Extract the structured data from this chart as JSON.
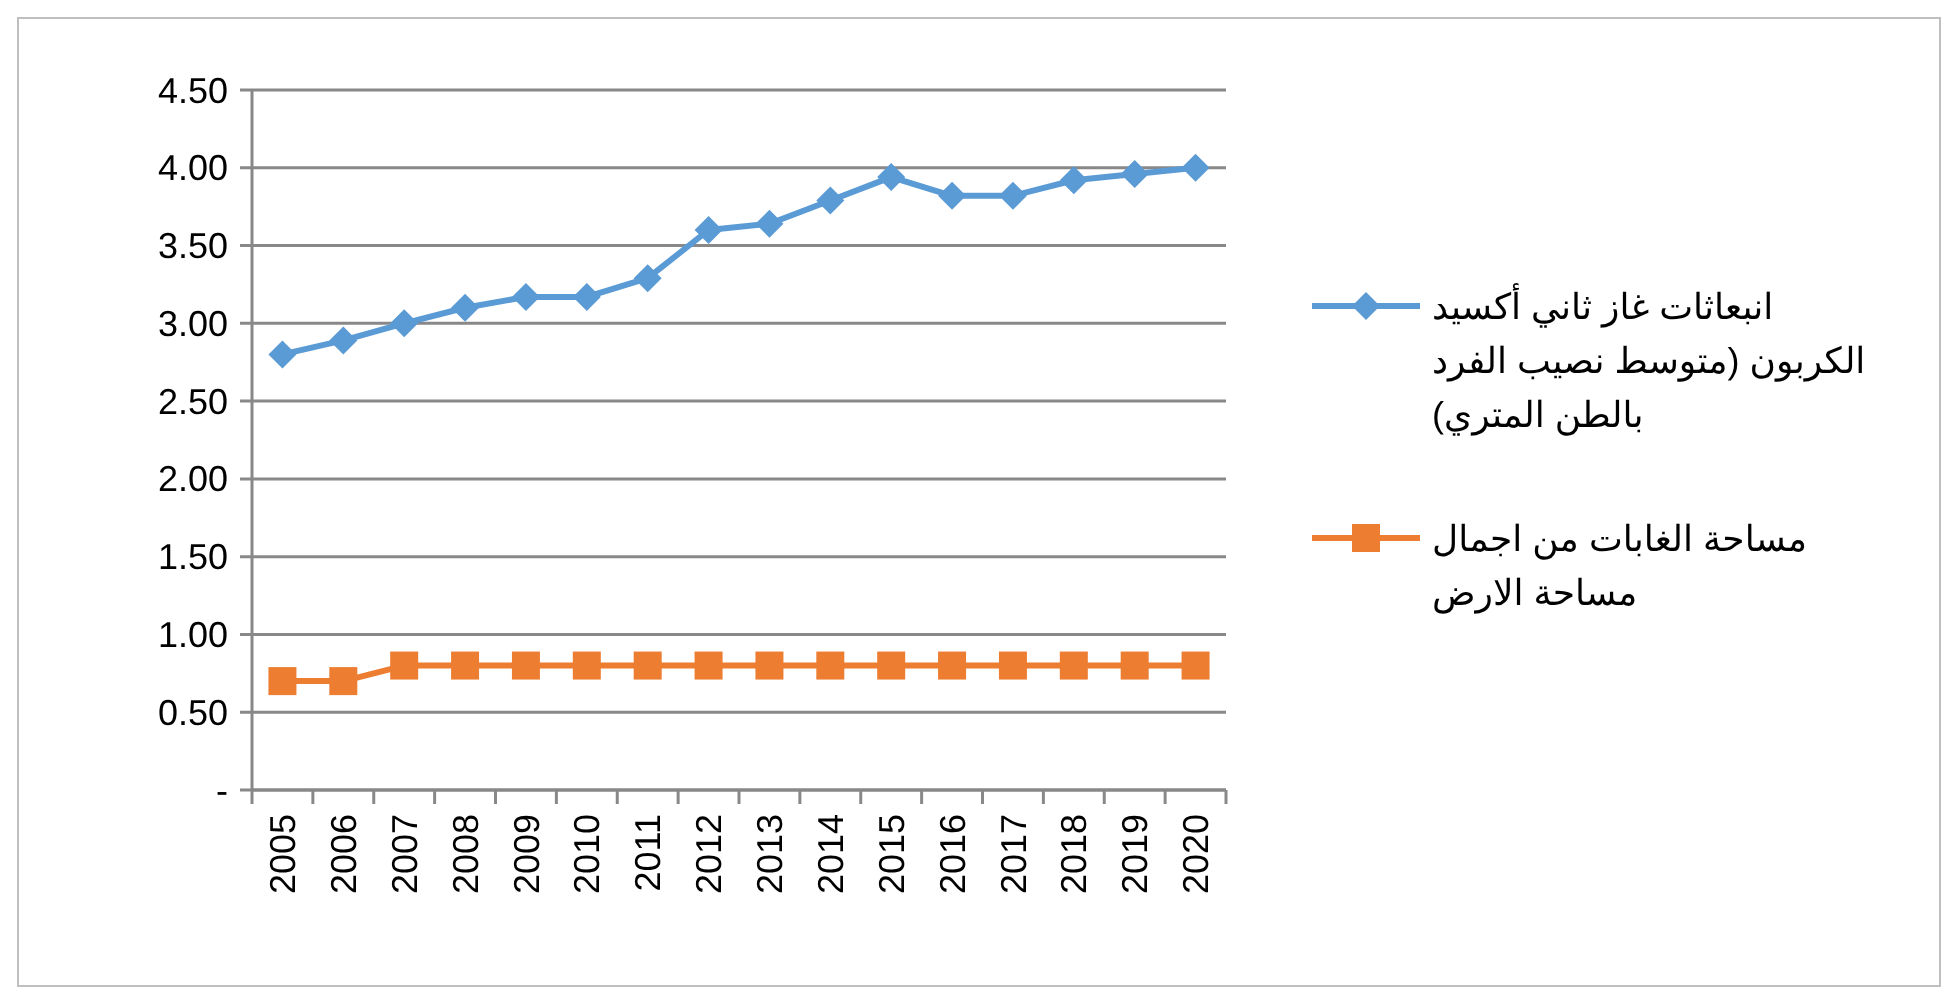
{
  "chart_data": {
    "type": "line",
    "categories": [
      "2005",
      "2006",
      "2007",
      "2008",
      "2009",
      "2010",
      "2011",
      "2012",
      "2013",
      "2014",
      "2015",
      "2016",
      "2017",
      "2018",
      "2019",
      "2020"
    ],
    "series": [
      {
        "name": "انبعاثات غاز ثاني أكسيد الكربون (متوسط نصيب الفرد بالطن المتري)",
        "color": "#5b9bd5",
        "marker": "diamond",
        "values": [
          2.8,
          2.89,
          3.0,
          3.1,
          3.17,
          3.17,
          3.29,
          3.6,
          3.64,
          3.79,
          3.94,
          3.82,
          3.82,
          3.92,
          3.96,
          4.0
        ]
      },
      {
        "name": "مساحة الغابات من اجمال مساحة الارض",
        "color": "#ed7d31",
        "marker": "square",
        "values": [
          0.7,
          0.7,
          0.8,
          0.8,
          0.8,
          0.8,
          0.8,
          0.8,
          0.8,
          0.8,
          0.8,
          0.8,
          0.8,
          0.8,
          0.8,
          0.8
        ]
      }
    ],
    "ylim": [
      0,
      4.5
    ],
    "yticks": [
      {
        "value": 0,
        "label": "-"
      },
      {
        "value": 0.5,
        "label": "0.50"
      },
      {
        "value": 1,
        "label": "1.00"
      },
      {
        "value": 1.5,
        "label": "1.50"
      },
      {
        "value": 2,
        "label": "2.00"
      },
      {
        "value": 2.5,
        "label": "2.50"
      },
      {
        "value": 3,
        "label": "3.00"
      },
      {
        "value": 3.5,
        "label": "3.50"
      },
      {
        "value": 4,
        "label": "4.00"
      },
      {
        "value": 4.5,
        "label": "4.50"
      }
    ],
    "grid": "y",
    "legend": "right"
  }
}
